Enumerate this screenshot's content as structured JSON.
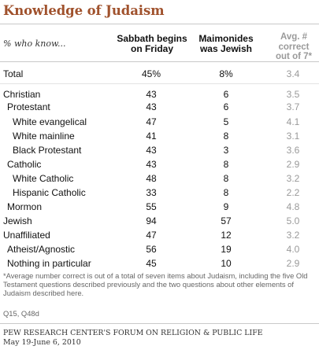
{
  "title": "Knowledge of Judaism",
  "columns": {
    "label": "% who know...",
    "sabbath": [
      "Sabbath begins",
      "on Friday"
    ],
    "maimonides": [
      "Maimonides",
      "was Jewish"
    ],
    "avg": [
      "Avg. #",
      "correct",
      "out of 7*"
    ]
  },
  "rows": [
    {
      "name": "Total",
      "sabbath": "45%",
      "maimonides": "8%",
      "avg": "3.4"
    },
    {
      "name": "Christian",
      "sabbath": "43",
      "maimonides": "6",
      "avg": "3.5"
    },
    {
      "name": "Protestant",
      "sabbath": "43",
      "maimonides": "6",
      "avg": "3.7"
    },
    {
      "name": "White evangelical",
      "sabbath": "47",
      "maimonides": "5",
      "avg": "4.1"
    },
    {
      "name": "White mainline",
      "sabbath": "41",
      "maimonides": "8",
      "avg": "3.1"
    },
    {
      "name": "Black Protestant",
      "sabbath": "43",
      "maimonides": "3",
      "avg": "3.6"
    },
    {
      "name": "Catholic",
      "sabbath": "43",
      "maimonides": "8",
      "avg": "2.9"
    },
    {
      "name": "White Catholic",
      "sabbath": "48",
      "maimonides": "8",
      "avg": "3.2"
    },
    {
      "name": "Hispanic Catholic",
      "sabbath": "33",
      "maimonides": "8",
      "avg": "2.2"
    },
    {
      "name": "Mormon",
      "sabbath": "55",
      "maimonides": "9",
      "avg": "4.8"
    },
    {
      "name": "Jewish",
      "sabbath": "94",
      "maimonides": "57",
      "avg": "5.0"
    },
    {
      "name": "Unaffiliated",
      "sabbath": "47",
      "maimonides": "12",
      "avg": "3.2"
    },
    {
      "name": "Atheist/Agnostic",
      "sabbath": "56",
      "maimonides": "19",
      "avg": "4.0"
    },
    {
      "name": "Nothing in particular",
      "sabbath": "45",
      "maimonides": "10",
      "avg": "2.9"
    }
  ],
  "footnote": "*Average number correct is out of a total of seven items about Judaism, including the five Old Testament questions described previously and the two questions about other elements of Judaism described here.",
  "question_ref": "Q15, Q48d",
  "source": [
    "PEW RESEARCH CENTER'S FORUM ON RELIGION & PUBLIC LIFE",
    "May 19-June 6, 2010"
  ]
}
